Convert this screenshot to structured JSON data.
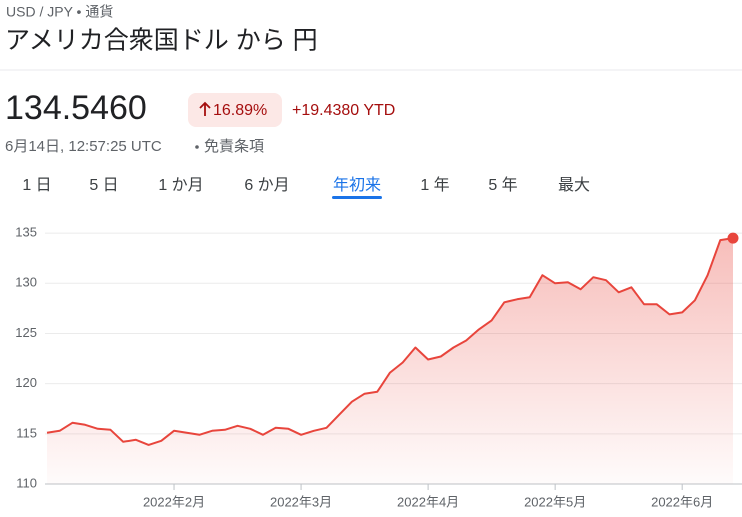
{
  "header": {
    "breadcrumb": "USD / JPY • 通貨",
    "title": "アメリカ合衆国ドル から 円"
  },
  "quote": {
    "price": "134.5460",
    "change_pct": "16.89%",
    "change_abs": "+19.4380 YTD",
    "timestamp": "6月14日, 12:57:25 UTC",
    "disclaimer": "免責条項"
  },
  "tabs": [
    {
      "label": "1 日",
      "active": false
    },
    {
      "label": "5 日",
      "active": false
    },
    {
      "label": "1 か月",
      "active": false
    },
    {
      "label": "6 か月",
      "active": false
    },
    {
      "label": "年初来",
      "active": true
    },
    {
      "label": "1 年",
      "active": false
    },
    {
      "label": "5 年",
      "active": false
    },
    {
      "label": "最大",
      "active": false
    }
  ],
  "chart_data": {
    "type": "line",
    "color": "#e8453c",
    "categories": [
      null,
      null,
      null,
      null,
      null,
      null,
      null,
      null,
      null,
      null,
      "2022年2月",
      null,
      null,
      null,
      null,
      null,
      null,
      null,
      null,
      null,
      "2022年3月",
      null,
      null,
      null,
      null,
      null,
      null,
      null,
      null,
      null,
      "2022年4月",
      null,
      null,
      null,
      null,
      null,
      null,
      null,
      null,
      null,
      "2022年5月",
      null,
      null,
      null,
      null,
      null,
      null,
      null,
      null,
      null,
      "2022年6月",
      null,
      null,
      null,
      null
    ],
    "values": [
      115.1,
      115.3,
      116.1,
      115.9,
      115.5,
      115.4,
      114.2,
      114.4,
      113.9,
      114.3,
      115.3,
      115.1,
      114.9,
      115.3,
      115.4,
      115.8,
      115.5,
      114.9,
      115.6,
      115.5,
      114.9,
      115.3,
      115.6,
      116.9,
      118.2,
      119.0,
      119.2,
      121.1,
      122.1,
      123.6,
      122.4,
      122.7,
      123.6,
      124.3,
      125.4,
      126.3,
      128.1,
      128.4,
      128.6,
      130.8,
      130.0,
      130.1,
      129.4,
      130.6,
      130.3,
      129.1,
      129.6,
      127.9,
      127.9,
      126.9,
      127.1,
      128.3,
      130.8,
      134.3,
      134.5
    ],
    "ylim": [
      110,
      136.8
    ],
    "yticks": [
      110,
      115,
      120,
      125,
      130,
      135
    ],
    "grid": true
  }
}
